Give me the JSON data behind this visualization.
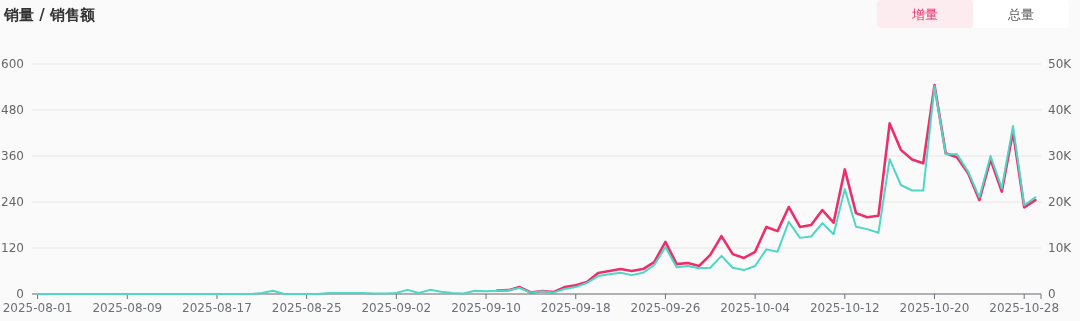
{
  "chart_data": {
    "type": "line",
    "title": "销量 / 销售额",
    "annotations": [
      "增量",
      "总量"
    ],
    "categories": [
      "2025-08-01",
      null,
      null,
      null,
      null,
      null,
      null,
      null,
      "2025-08-09",
      null,
      null,
      null,
      null,
      null,
      null,
      null,
      "2025-08-17",
      null,
      null,
      null,
      null,
      null,
      null,
      null,
      "2025-08-25",
      null,
      null,
      null,
      null,
      null,
      null,
      null,
      "2025-09-02",
      null,
      null,
      null,
      null,
      null,
      null,
      null,
      "2025-09-10",
      null,
      null,
      null,
      null,
      null,
      null,
      null,
      "2025-09-18",
      null,
      null,
      null,
      null,
      null,
      null,
      null,
      "2025-09-26",
      null,
      null,
      null,
      null,
      null,
      null,
      null,
      "2025-10-04",
      null,
      null,
      null,
      null,
      null,
      null,
      null,
      "2025-10-12",
      null,
      null,
      null,
      null,
      null,
      null,
      null,
      "2025-10-20",
      null,
      null,
      null,
      null,
      null,
      null,
      null,
      "2025-10-28",
      null
    ],
    "series": [
      {
        "color": "#ec2f6b",
        "values": [
          null,
          null,
          null,
          null,
          null,
          null,
          null,
          null,
          null,
          null,
          null,
          null,
          null,
          null,
          null,
          null,
          null,
          null,
          null,
          null,
          null,
          null,
          null,
          null,
          null,
          null,
          null,
          null,
          null,
          null,
          null,
          null,
          null,
          null,
          null,
          null,
          null,
          null,
          null,
          null,
          null,
          9,
          10,
          18,
          4,
          8,
          5,
          18,
          23,
          31,
          55,
          60,
          65,
          60,
          65,
          83,
          136,
          78,
          81,
          73,
          102,
          151,
          104,
          94,
          110,
          175,
          164,
          227,
          175,
          180,
          219,
          186,
          325,
          211,
          200,
          204,
          445,
          376,
          351,
          341,
          545,
          367,
          357,
          315,
          245,
          351,
          267,
          423,
          226,
          245
        ]
      },
      {
        "color": "#4fd6c4",
        "axis": "y2",
        "values": [
          0,
          0,
          0,
          0,
          0,
          0,
          0,
          0,
          0,
          0,
          0,
          0,
          0,
          0,
          0,
          0,
          0,
          0,
          0,
          0,
          200,
          700,
          0,
          0,
          0,
          0,
          200,
          200,
          200,
          200,
          100,
          100,
          200,
          900,
          200,
          900,
          500,
          200,
          100,
          700,
          600,
          700,
          800,
          1300,
          300,
          600,
          300,
          1100,
          1500,
          2400,
          3900,
          4300,
          4600,
          4100,
          4600,
          6300,
          10200,
          5800,
          6100,
          5600,
          5700,
          8300,
          5700,
          5200,
          6100,
          9700,
          9200,
          15700,
          12200,
          12500,
          15400,
          13000,
          22800,
          14600,
          14100,
          13300,
          29300,
          23700,
          22500,
          22500,
          45200,
          30400,
          30400,
          26600,
          21000,
          30000,
          23000,
          36500,
          19300,
          21000
        ]
      }
    ],
    "ylim": [
      0,
      600
    ],
    "yticks": [
      0,
      120,
      240,
      360,
      480,
      600
    ],
    "y2lim": [
      0,
      50000
    ],
    "y2ticks": [
      0,
      {
        "value": 10000,
        "label": "10K"
      },
      {
        "value": 20000,
        "label": "20K"
      },
      {
        "value": 30000,
        "label": "30K"
      },
      {
        "value": 40000,
        "label": "40K"
      },
      {
        "value": 50000,
        "label": "50K"
      }
    ],
    "grid": "y",
    "marker": "none",
    "line_style": "solid"
  }
}
